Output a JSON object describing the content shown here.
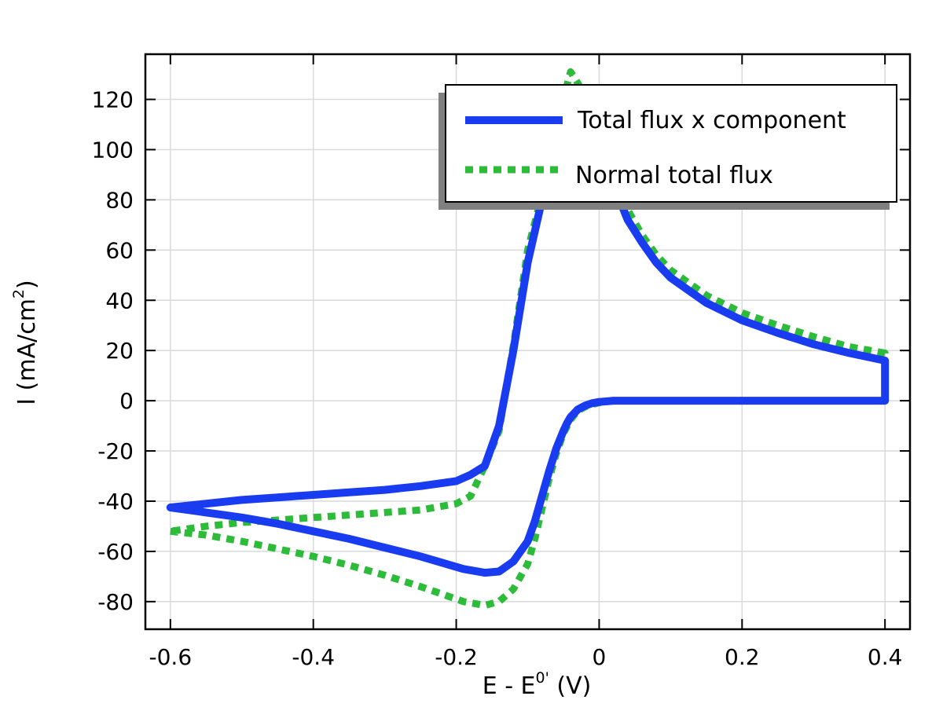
{
  "chart_data": {
    "type": "line",
    "xlabel_main": "E - E",
    "xlabel_sup": "0'",
    "xlabel_tail": " (V)",
    "ylabel_main": "I (mA/cm",
    "ylabel_sup": "2",
    "ylabel_tail": ")",
    "xlim": [
      -0.635,
      0.435
    ],
    "ylim": [
      -91,
      138
    ],
    "x_ticks": [
      -0.6,
      -0.4,
      -0.2,
      0,
      0.2,
      0.4
    ],
    "x_tick_labels": [
      "-0.6",
      "-0.4",
      "-0.2",
      "0",
      "0.2",
      "0.4"
    ],
    "y_ticks": [
      -80,
      -60,
      -40,
      -20,
      0,
      20,
      40,
      60,
      80,
      100,
      120
    ],
    "y_tick_labels": [
      "-80",
      "-60",
      "-40",
      "-20",
      "0",
      "20",
      "40",
      "60",
      "80",
      "100",
      "120"
    ],
    "grid": true,
    "legend_position": "top-right",
    "series": [
      {
        "name": "Total flux x component",
        "color": "#1a3cf0",
        "style": "solid",
        "x": [
          -0.6,
          -0.55,
          -0.5,
          -0.45,
          -0.4,
          -0.35,
          -0.3,
          -0.25,
          -0.22,
          -0.19,
          -0.16,
          -0.14,
          -0.12,
          -0.1,
          -0.09,
          -0.08,
          -0.07,
          -0.06,
          -0.05,
          -0.045,
          -0.04,
          -0.03,
          -0.02,
          -0.01,
          0,
          0.02,
          0.05,
          0.1,
          0.15,
          0.2,
          0.25,
          0.3,
          0.35,
          0.4,
          0.4,
          0.35,
          0.3,
          0.25,
          0.2,
          0.15,
          0.1,
          0.08,
          0.06,
          0.04,
          0.02,
          0,
          -0.02,
          -0.04,
          -0.06,
          -0.08,
          -0.1,
          -0.12,
          -0.14,
          -0.16,
          -0.18,
          -0.2,
          -0.25,
          -0.3,
          -0.35,
          -0.4,
          -0.45,
          -0.5,
          -0.55,
          -0.6
        ],
        "y": [
          -42.5,
          -44.5,
          -46.5,
          -49,
          -52,
          -55,
          -58.5,
          -62,
          -64.5,
          -67,
          -68.5,
          -68,
          -64,
          -56,
          -48,
          -38,
          -28,
          -19,
          -12,
          -9,
          -6.5,
          -3.5,
          -2,
          -1,
          -0.5,
          0,
          0,
          0,
          0,
          0,
          0,
          0,
          0,
          0,
          16,
          19,
          22.5,
          27,
          32,
          39,
          49,
          55,
          63,
          72,
          86,
          101,
          112,
          113,
          108,
          80,
          55,
          20,
          -10,
          -26,
          -29.5,
          -32,
          -34,
          -35.5,
          -36.5,
          -37.5,
          -38.5,
          -39.5,
          -41,
          -42.5
        ]
      },
      {
        "name": "Normal total flux",
        "color": "#2dbb3a",
        "style": "dotted",
        "x": [
          -0.6,
          -0.55,
          -0.5,
          -0.45,
          -0.4,
          -0.35,
          -0.3,
          -0.25,
          -0.22,
          -0.19,
          -0.16,
          -0.14,
          -0.12,
          -0.1,
          -0.09,
          -0.08,
          -0.07,
          -0.06,
          -0.05,
          -0.04,
          -0.03,
          -0.02,
          -0.01,
          0,
          0.02,
          0.05,
          0.1,
          0.15,
          0.2,
          0.25,
          0.3,
          0.35,
          0.4,
          0.4,
          0.35,
          0.3,
          0.25,
          0.2,
          0.15,
          0.1,
          0.08,
          0.06,
          0.04,
          0.02,
          0,
          -0.02,
          -0.04,
          -0.06,
          -0.08,
          -0.1,
          -0.12,
          -0.14,
          -0.16,
          -0.18,
          -0.2,
          -0.25,
          -0.3,
          -0.35,
          -0.4,
          -0.45,
          -0.5,
          -0.55,
          -0.6
        ],
        "y": [
          -52,
          -53.5,
          -56,
          -59,
          -62,
          -65.5,
          -69.5,
          -74,
          -77,
          -80,
          -81.5,
          -80,
          -75,
          -65,
          -55,
          -43,
          -31,
          -21,
          -13,
          -7.5,
          -4,
          -2.5,
          -1.5,
          -0.8,
          0,
          0,
          0,
          0,
          0,
          0,
          0,
          0,
          0,
          19,
          21.5,
          25.5,
          30,
          35,
          42,
          52,
          58,
          66,
          76,
          92,
          108,
          122,
          131,
          110,
          82,
          60,
          22,
          -12,
          -26,
          -38,
          -41,
          -43.5,
          -44.5,
          -45.5,
          -46.5,
          -47.5,
          -48.5,
          -50,
          -52
        ]
      }
    ]
  }
}
